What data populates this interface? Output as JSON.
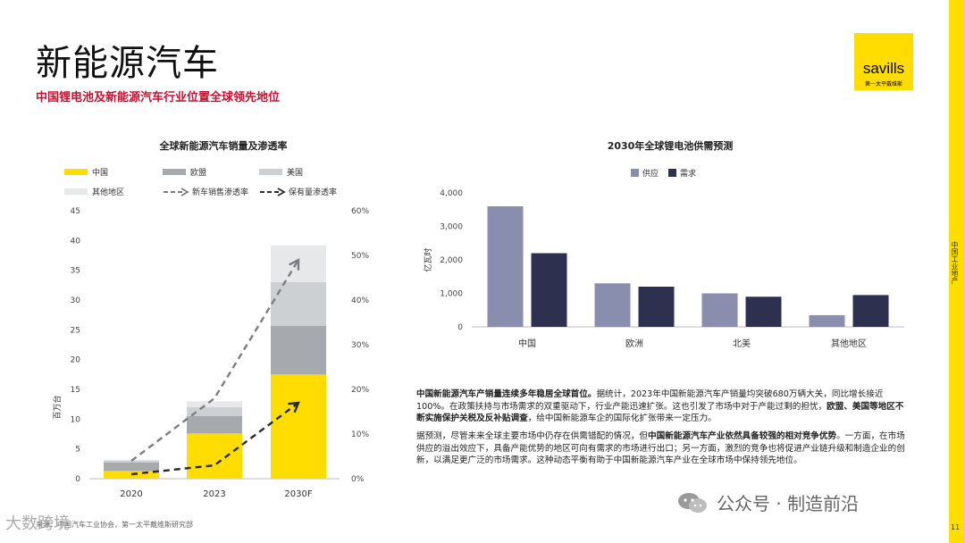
{
  "page": {
    "title": "新能源汽车",
    "subtitle": "中国锂电池及新能源汽车行业位置全球领先地位",
    "logo": {
      "word": "savills",
      "sub": "第一太平戴维斯"
    },
    "side_label": "中国工业地产",
    "page_number": "11",
    "watermark": "公众号 · 制造前沿",
    "source": "来源：中国汽车工业协会，第一太平戴维斯研究部",
    "corner_mark": "大数跨境"
  },
  "left_chart": {
    "title": "全球新能源汽车销量及渗透率",
    "ylabel": "百万台",
    "legend": [
      {
        "label": "中国",
        "color": "#ffdd00",
        "kind": "box"
      },
      {
        "label": "欧盟",
        "color": "#a6a9ad",
        "kind": "box"
      },
      {
        "label": "美国",
        "color": "#cdd0d3",
        "kind": "box"
      },
      {
        "label": "其他地区",
        "color": "#e7e8ea",
        "kind": "box"
      },
      {
        "label": "新车销售渗透率",
        "color": "#7a7e84",
        "kind": "dash"
      },
      {
        "label": "保有量渗透率",
        "color": "#2a2a2a",
        "kind": "dash"
      }
    ]
  },
  "right_chart": {
    "title": "2030年全球锂电池供需预测",
    "ylabel": "亿瓦时",
    "legend": [
      {
        "label": "供应",
        "color": "#8a8eae"
      },
      {
        "label": "需求",
        "color": "#2e3050"
      }
    ]
  },
  "chart_data": [
    {
      "type": "bar",
      "stacked": true,
      "title": "全球新能源汽车销量及渗透率",
      "categories": [
        "2020",
        "2023",
        "2030F"
      ],
      "ylabel": "百万台",
      "ylim": [
        0,
        45
      ],
      "yticks": [
        "0",
        "5",
        "10",
        "15",
        "20",
        "25",
        "30",
        "35",
        "40",
        "45"
      ],
      "y2lim": [
        0,
        60
      ],
      "y2ticks": [
        "0%",
        "10%",
        "20%",
        "30%",
        "40%",
        "50%",
        "60%"
      ],
      "series": [
        {
          "name": "中国",
          "color": "#ffdd00",
          "values": [
            1.3,
            7.6,
            17.5
          ]
        },
        {
          "name": "欧盟",
          "color": "#a6a9ad",
          "values": [
            1.4,
            2.9,
            8.2
          ]
        },
        {
          "name": "美国",
          "color": "#cdd0d3",
          "values": [
            0.3,
            1.5,
            7.3
          ]
        },
        {
          "name": "其他地区",
          "color": "#e7e8ea",
          "values": [
            0.2,
            1.0,
            6.2
          ]
        }
      ],
      "lines": [
        {
          "name": "新车销售渗透率",
          "axis": "right",
          "color": "#7a7e84",
          "values": [
            4,
            18,
            49
          ]
        },
        {
          "name": "保有量渗透率",
          "axis": "right",
          "color": "#2a2a2a",
          "values": [
            1,
            3,
            17
          ]
        }
      ],
      "grid": false,
      "legend_position": "top"
    },
    {
      "type": "bar",
      "title": "2030年全球锂电池供需预测",
      "categories": [
        "中国",
        "欧洲",
        "北美",
        "其他地区"
      ],
      "ylabel": "亿瓦时",
      "ylim": [
        0,
        4000
      ],
      "yticks": [
        "0",
        "1,000",
        "2,000",
        "3,000",
        "4,000"
      ],
      "series": [
        {
          "name": "供应",
          "color": "#8a8eae",
          "values": [
            3600,
            1300,
            1000,
            350
          ]
        },
        {
          "name": "需求",
          "color": "#2e3050",
          "values": [
            2200,
            1200,
            900,
            950
          ]
        }
      ],
      "grid": false,
      "legend_position": "top-left"
    }
  ],
  "text": {
    "p1": [
      {
        "t": "中国新能源汽车产销量连续多年稳居全球首位。",
        "b": true
      },
      {
        "t": "据统计，2023年中国新能源汽车产销量均突破680万辆大关，同比增长接近100%。在政策扶持与市场需求的双重驱动下，行业产能迅速扩张。这也引发了市场中对于产能过剩的担忧，",
        "b": false
      },
      {
        "t": "欧盟、美国等地区不断实施保护关税及反补贴调查",
        "b": true
      },
      {
        "t": "，给中国新能源车企的国际化扩张带来一定压力。",
        "b": false
      }
    ],
    "p2": [
      {
        "t": "据预测，尽管未来全球主要市场中仍存在供需错配的情况，但",
        "b": false
      },
      {
        "t": "中国新能源汽车产业依然具备较强的相对竞争优势",
        "b": true
      },
      {
        "t": "。一方面，在市场供应的溢出效应下，具备产能优势的地区可向有需求的市场进行出口；另一方面，激烈的竞争也将促进产业链升级和制造企业的创新，以满足更广泛的市场需求。这种动态平衡有助于中国新能源汽车产业在全球市场中保持领先地位。",
        "b": false
      }
    ]
  }
}
